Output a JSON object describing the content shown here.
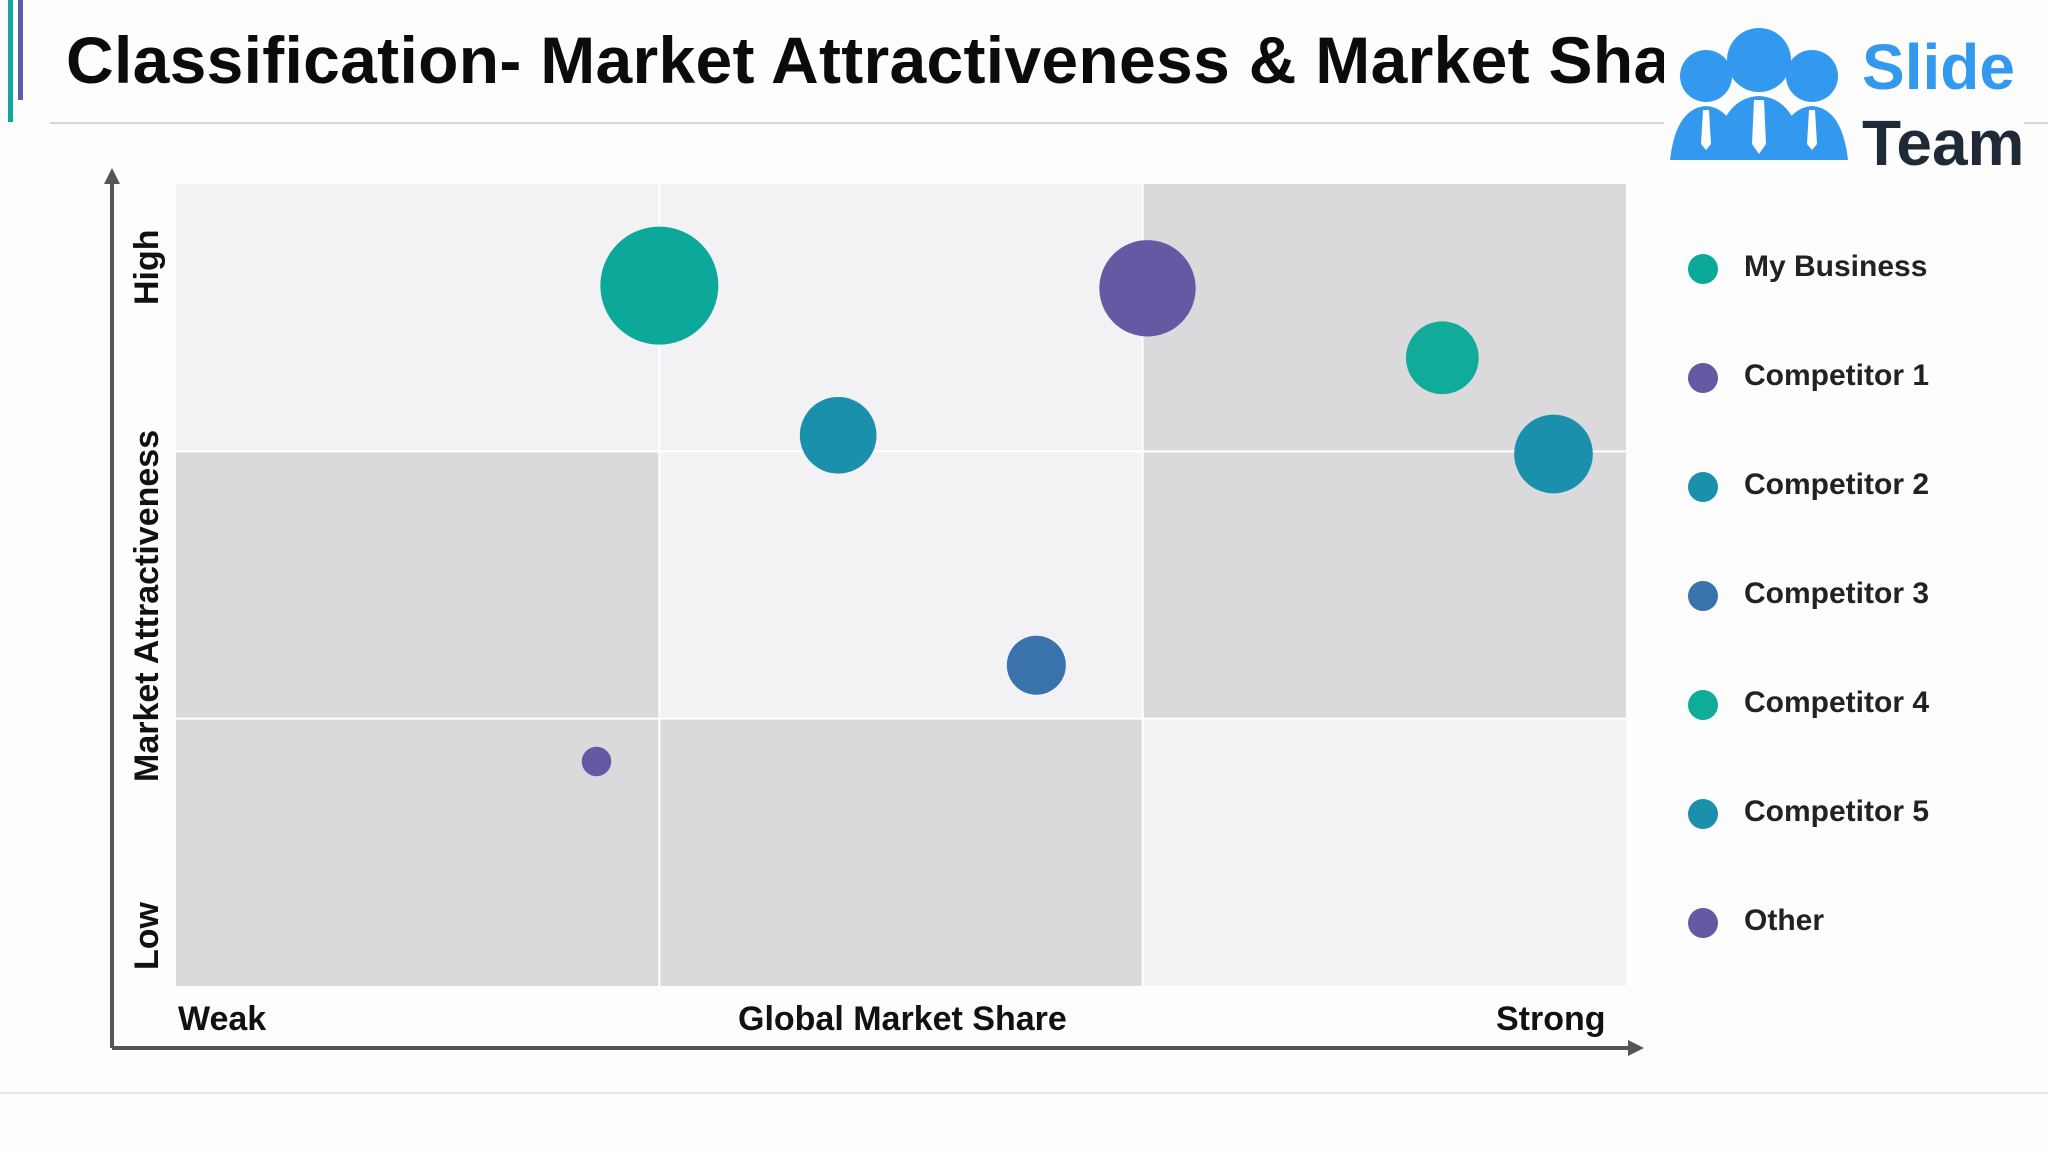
{
  "title": "Classification- Market Attractiveness & Market Share",
  "logo": {
    "line1": "Slide",
    "line2": "Team"
  },
  "colors": {
    "accent_teal": "#13a89e",
    "accent_purple": "#5b5ba8",
    "cell_light": "#f2f1f4",
    "cell_dark": "#dad9dc",
    "axis": "#555555"
  },
  "chart_data": {
    "type": "scatter",
    "subtype": "bubble matrix",
    "xlabel": "Global Market Share",
    "ylabel": "Market Attractiveness",
    "x_low_label": "Weak",
    "x_high_label": "Strong",
    "y_low_label": "Low",
    "y_high_label": "High",
    "xlim": [
      0,
      3
    ],
    "ylim": [
      0,
      3
    ],
    "grid": "3x3 shaded matrix",
    "grid_shading": [
      [
        "light",
        "light",
        "dark"
      ],
      [
        "dark",
        "light",
        "dark"
      ],
      [
        "dark",
        "dark",
        "light"
      ]
    ],
    "legend_position": "right",
    "series": [
      {
        "name": "My Business",
        "color": "#0ca899",
        "x": 1.0,
        "y": 2.62,
        "size": 3.0
      },
      {
        "name": "Competitor 1",
        "color": "#6459a3",
        "x": 2.01,
        "y": 2.61,
        "size": 2.45
      },
      {
        "name": "Competitor 2",
        "color": "#1b90ad",
        "x": 1.37,
        "y": 2.06,
        "size": 1.95
      },
      {
        "name": "Competitor 3",
        "color": "#3a72ac",
        "x": 1.78,
        "y": 1.2,
        "size": 1.5
      },
      {
        "name": "Competitor 4",
        "color": "#10ac99",
        "x": 2.62,
        "y": 2.35,
        "size": 1.85
      },
      {
        "name": "Competitor 5",
        "color": "#1b90ad",
        "x": 2.85,
        "y": 1.99,
        "size": 2.0
      },
      {
        "name": "Other",
        "color": "#6459a3",
        "x": 0.87,
        "y": 0.84,
        "size": 0.75
      }
    ]
  }
}
